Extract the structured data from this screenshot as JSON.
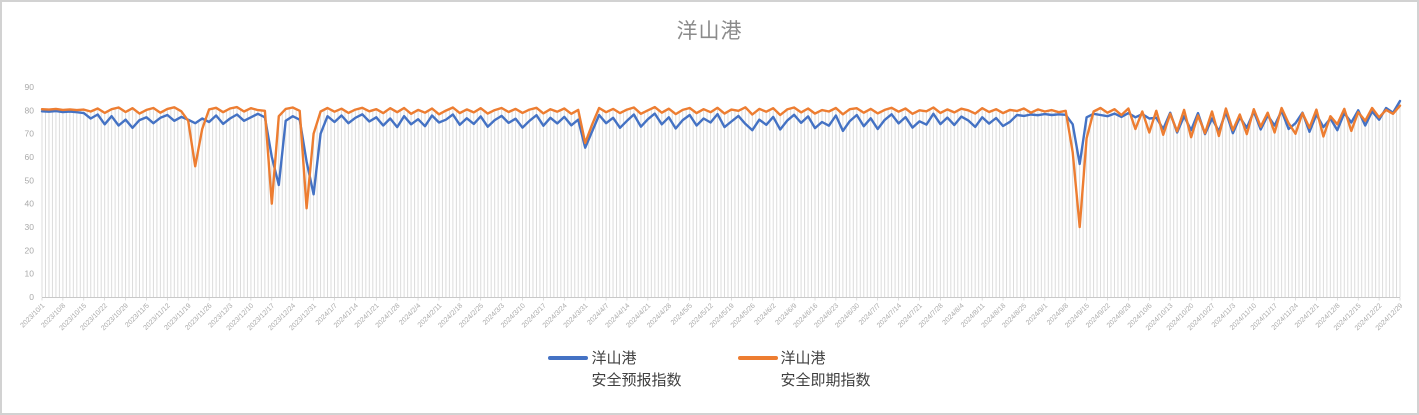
{
  "window": {
    "background": "#ffffff",
    "border_color": "#d2d2d2"
  },
  "chart_data": {
    "type": "line",
    "title": "洋山港",
    "title_color": "#8b8b8b",
    "legend_position": "bottom",
    "gridlines": "vertical-droplines-only",
    "ylim": [
      0,
      90
    ],
    "ytick_step": 10,
    "axis_color": "#c9c9c9",
    "dropline_color": "#dcdcdc",
    "tick_label_color": "#a9a9a9",
    "legend_text_color": "#404040",
    "points_per_tick": 3,
    "x_tick_labels": [
      "2023/10/1",
      "2023/10/8",
      "2023/10/15",
      "2023/10/22",
      "2023/10/29",
      "2023/11/5",
      "2023/11/12",
      "2023/11/19",
      "2023/11/26",
      "2023/12/3",
      "2023/12/10",
      "2023/12/17",
      "2023/12/24",
      "2023/12/31",
      "2024/1/7",
      "2024/1/14",
      "2024/1/21",
      "2024/1/28",
      "2024/2/4",
      "2024/2/11",
      "2024/2/18",
      "2024/2/25",
      "2024/3/3",
      "2024/3/10",
      "2024/3/17",
      "2024/3/24",
      "2024/3/31",
      "2024/4/7",
      "2024/4/14",
      "2024/4/21",
      "2024/4/28",
      "2024/5/5",
      "2024/5/12",
      "2024/5/19",
      "2024/5/26",
      "2024/6/2",
      "2024/6/9",
      "2024/6/16",
      "2024/6/23",
      "2024/6/30",
      "2024/7/7",
      "2024/7/14",
      "2024/7/21",
      "2024/7/28",
      "2024/8/4",
      "2024/8/11",
      "2024/8/18",
      "2024/8/25",
      "2024/9/1",
      "2024/9/8",
      "2024/9/15",
      "2024/9/22",
      "2024/9/29",
      "2024/10/6",
      "2024/10/13",
      "2024/10/20",
      "2024/10/27",
      "2024/11/3",
      "2024/11/10",
      "2024/11/17",
      "2024/11/24",
      "2024/12/1",
      "2024/12/8",
      "2024/12/15",
      "2024/12/22",
      "2024/12/29"
    ],
    "series": [
      {
        "name": "洋山港 安全预报指数",
        "legend_lines": [
          "洋山港",
          "安全预报指数"
        ],
        "color": "#4472C4",
        "values": [
          79.6,
          79.4,
          79.7,
          79.3,
          79.5,
          79.2,
          78.8,
          76.5,
          78.2,
          74.0,
          77.5,
          73.5,
          76.0,
          72.5,
          75.8,
          77.0,
          74.5,
          76.8,
          78.0,
          75.5,
          77.2,
          76.0,
          74.5,
          76.5,
          75.0,
          77.8,
          74.2,
          76.5,
          78.2,
          75.5,
          77.0,
          78.5,
          77.0,
          60,
          48,
          75.5,
          77.5,
          76.0,
          58,
          44,
          70,
          77.5,
          75.0,
          77.8,
          74.5,
          76.8,
          78.3,
          75.2,
          77.0,
          73.5,
          76.5,
          72.8,
          77.5,
          74.0,
          76.2,
          73.2,
          77.8,
          74.8,
          76.0,
          78.2,
          73.8,
          76.6,
          74.2,
          77.4,
          73.0,
          75.8,
          77.6,
          74.6,
          76.4,
          72.6,
          75.5,
          77.9,
          73.4,
          76.8,
          74.4,
          77.2,
          73.6,
          76.0,
          64,
          71,
          78.0,
          74.5,
          76.8,
          72.5,
          75.5,
          78.2,
          73.0,
          76.2,
          78.6,
          74.0,
          77.0,
          72.2,
          75.8,
          78.0,
          73.5,
          76.5,
          74.8,
          78.4,
          72.8,
          75.2,
          77.6,
          74.2,
          71.5,
          76.0,
          73.8,
          77.2,
          71.8,
          75.6,
          78.1,
          74.6,
          77.4,
          72.4,
          75.0,
          73.4,
          77.8,
          71.2,
          75.4,
          78.0,
          73.2,
          76.6,
          72.0,
          75.9,
          78.3,
          74.4,
          77.1,
          72.6,
          75.3,
          73.9,
          78.5,
          74.1,
          76.9,
          73.7,
          77.3,
          75.7,
          72.9,
          77.0,
          74.3,
          76.7,
          73.3,
          75.1,
          78.0,
          77.6,
          78.2,
          77.9,
          78.4,
          78.0,
          78.3,
          78.1,
          74,
          57,
          77,
          78.5,
          78.0,
          77.5,
          78.6,
          77.2,
          78.8,
          77.0,
          78.4,
          76.5,
          76.8,
          72.0,
          79.0,
          70.5,
          77.5,
          71.5,
          78.8,
          69.8,
          76.5,
          71.0,
          79.2,
          70.2,
          77.0,
          72.5,
          79.5,
          71.8,
          77.8,
          73.5,
          79.8,
          72.0,
          74.5,
          79.0,
          70.8,
          78.2,
          72.8,
          76.5,
          71.5,
          78.8,
          74.8,
          80.0,
          73.5,
          79.5,
          76.0,
          81.0,
          79.0,
          84.0
        ]
      },
      {
        "name": "洋山港 安全即期指数",
        "legend_lines": [
          "洋山港",
          "安全即期指数"
        ],
        "color": "#ED7D31",
        "values": [
          80.5,
          80.3,
          80.6,
          80.2,
          80.4,
          80.1,
          80.3,
          79.5,
          80.8,
          78.9,
          80.5,
          81.2,
          79.3,
          80.9,
          78.6,
          80.2,
          81.0,
          79.0,
          80.6,
          81.3,
          79.6,
          75.5,
          56,
          72,
          80.4,
          81.1,
          79.2,
          80.8,
          81.4,
          79.5,
          80.9,
          80.1,
          79.8,
          40,
          77.5,
          80.6,
          81.2,
          79.8,
          38,
          70,
          79.5,
          81.0,
          79.4,
          80.7,
          78.9,
          80.3,
          81.1,
          79.6,
          80.5,
          78.8,
          80.9,
          79.2,
          81.0,
          78.5,
          80.2,
          79.0,
          80.8,
          78.3,
          79.9,
          81.2,
          78.8,
          80.4,
          79.1,
          80.9,
          78.6,
          80.1,
          81.0,
          79.3,
          80.6,
          78.9,
          80.3,
          81.1,
          78.7,
          80.5,
          79.4,
          80.8,
          78.5,
          80.2,
          66,
          74,
          81.0,
          79.2,
          80.6,
          78.8,
          80.3,
          81.2,
          78.5,
          80.0,
          81.4,
          79.0,
          80.7,
          78.4,
          80.2,
          81.0,
          78.8,
          80.5,
          79.2,
          81.1,
          78.6,
          80.3,
          79.8,
          81.3,
          78.2,
          80.6,
          79.4,
          80.9,
          78.0,
          80.4,
          81.2,
          79.1,
          80.8,
          78.6,
          80.1,
          79.5,
          81.0,
          78.3,
          80.5,
          80.9,
          79.0,
          80.6,
          78.7,
          80.2,
          81.1,
          79.4,
          80.8,
          78.5,
          80.0,
          79.6,
          81.2,
          78.9,
          80.4,
          79.1,
          80.7,
          80.0,
          78.6,
          80.9,
          79.3,
          80.5,
          78.8,
          80.2,
          79.7,
          80.8,
          79.0,
          80.4,
          79.5,
          80.1,
          79.2,
          79.8,
          62,
          30,
          68,
          79.5,
          81.0,
          79.0,
          80.5,
          78.0,
          80.8,
          72.0,
          79.5,
          70.5,
          79.8,
          69.5,
          78.5,
          71.0,
          80.2,
          68.5,
          77.8,
          70.2,
          79.5,
          69.0,
          80.8,
          71.5,
          78.2,
          69.8,
          80.5,
          73.0,
          79.0,
          70.5,
          81.0,
          74.5,
          70.0,
          78.8,
          72.5,
          80.3,
          68.8,
          77.5,
          74.0,
          80.6,
          71.2,
          79.2,
          75.5,
          81.0,
          77.0,
          80.2,
          78.5,
          82.0
        ]
      }
    ]
  }
}
